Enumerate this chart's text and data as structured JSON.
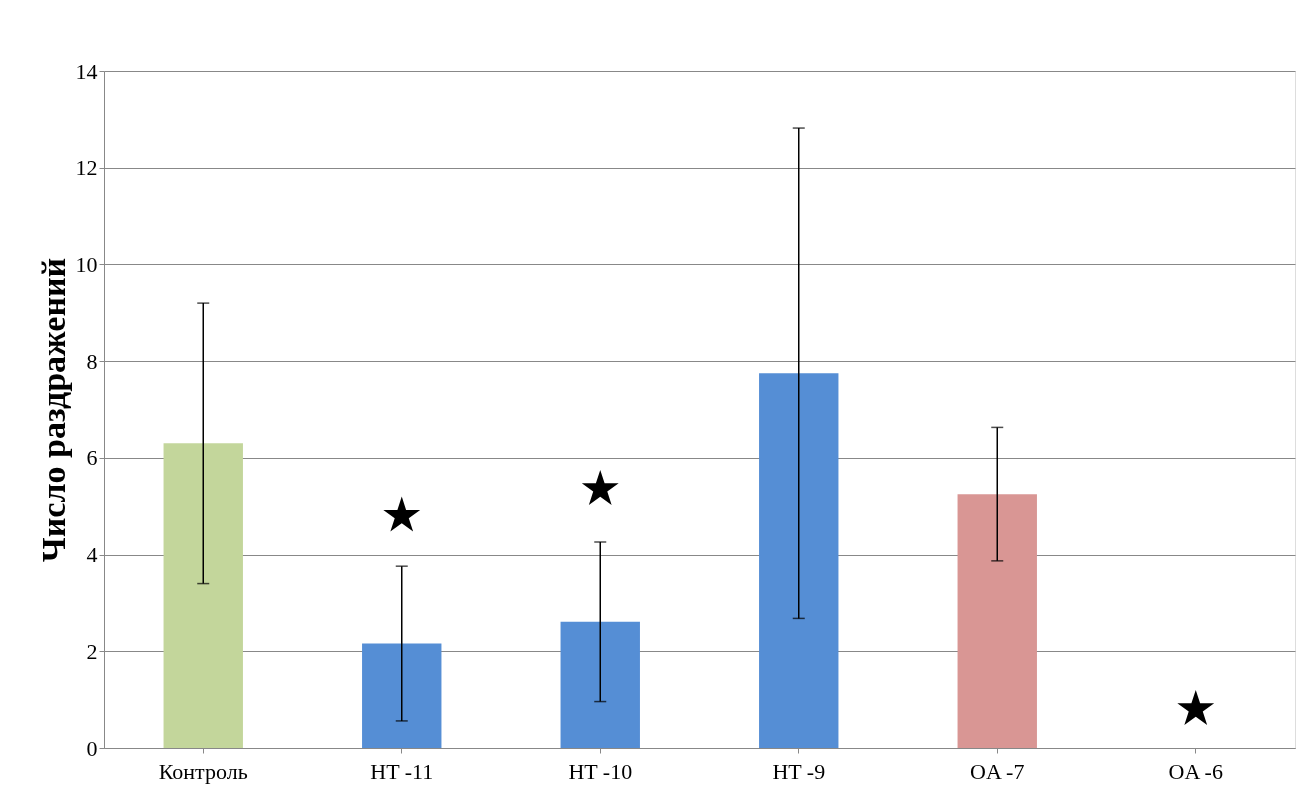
{
  "chart_data": {
    "type": "bar",
    "ylabel": "Число раздражений",
    "categories": [
      "Контроль",
      "HT -11",
      "HT -10",
      "HT -9",
      "OA -7",
      "OA -6"
    ],
    "series": [
      {
        "values": [
          6.3,
          2.16,
          2.61,
          7.75,
          5.25,
          0
        ],
        "colors": [
          "#c3d69b",
          "#558ed5",
          "#558ed5",
          "#558ed5",
          "#d99694",
          "#558ed5"
        ],
        "errors": [
          2.9,
          1.6,
          1.65,
          5.07,
          1.38,
          null
        ]
      },
      {
        "type": "scatter",
        "marker": "star",
        "color": "#000000",
        "x": [
          "HT -11",
          "HT -10",
          "OA -6"
        ],
        "values": [
          4.8,
          5.35,
          0.8
        ]
      }
    ],
    "ylim": [
      0,
      14
    ],
    "yticks": [
      0,
      2,
      4,
      6,
      8,
      10,
      12,
      14
    ],
    "grid": "y"
  }
}
